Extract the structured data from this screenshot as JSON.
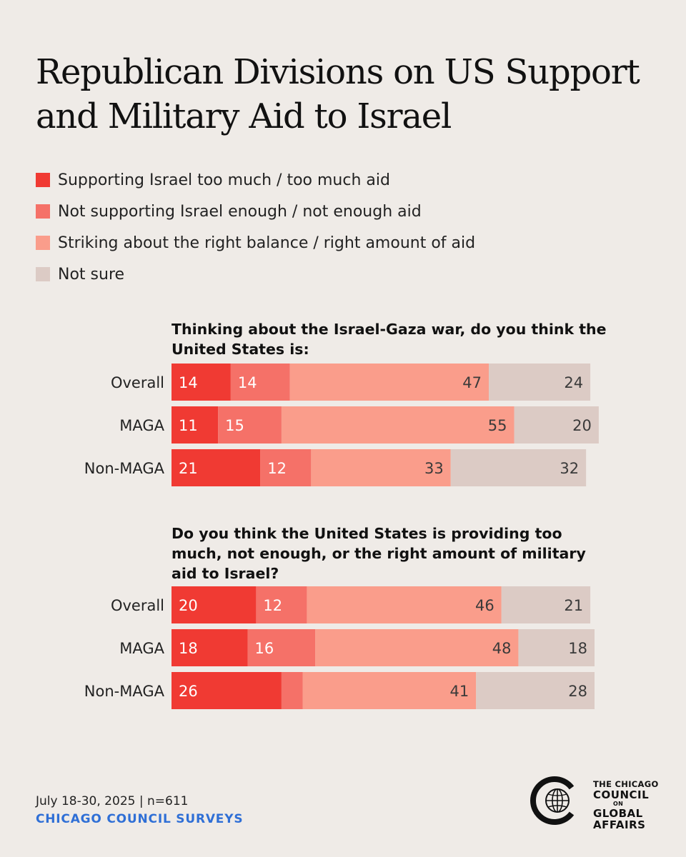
{
  "title": "Republican Divisions on US Support and Military Aid to Israel",
  "legend": [
    {
      "label": "Supporting Israel too much / too much aid",
      "color": "#f03a33"
    },
    {
      "label": "Not supporting Israel enough / not enough aid",
      "color": "#f57168"
    },
    {
      "label": "Striking about the right balance / right amount of aid",
      "color": "#fa9d8b"
    },
    {
      "label": "Not sure",
      "color": "#dccbc5"
    }
  ],
  "footer": {
    "date": "July 18-30, 2025 | n=611",
    "source": "CHICAGO COUNCIL SURVEYS"
  },
  "logo": {
    "line1": "THE CHICAGO",
    "line2": "COUNCIL",
    "line3": "ON",
    "line4": "GLOBAL",
    "line5": "AFFAIRS"
  },
  "chart_data": [
    {
      "type": "bar",
      "stacked": true,
      "orientation": "horizontal",
      "title": "Thinking about the Israel-Gaza war, do you think the United States is:",
      "categories": [
        "Overall",
        "MAGA",
        "Non-MAGA"
      ],
      "series": [
        {
          "name": "Supporting Israel too much / too much aid",
          "color": "#f03a33",
          "values": [
            14,
            11,
            21
          ]
        },
        {
          "name": "Not supporting Israel enough / not enough aid",
          "color": "#f57168",
          "values": [
            14,
            15,
            12
          ]
        },
        {
          "name": "Striking about the right balance / right amount of aid",
          "color": "#fa9d8b",
          "values": [
            47,
            55,
            33
          ]
        },
        {
          "name": "Not sure",
          "color": "#dccbc5",
          "values": [
            24,
            20,
            32
          ]
        }
      ]
    },
    {
      "type": "bar",
      "stacked": true,
      "orientation": "horizontal",
      "title": "Do you think the United States is providing too much, not enough, or the right amount of military aid to Israel?",
      "categories": [
        "Overall",
        "MAGA",
        "Non-MAGA"
      ],
      "series": [
        {
          "name": "Supporting Israel too much / too much aid",
          "color": "#f03a33",
          "values": [
            20,
            18,
            26
          ]
        },
        {
          "name": "Not supporting Israel enough / not enough aid",
          "color": "#f57168",
          "values": [
            12,
            16,
            5
          ],
          "labels": [
            "12",
            "16",
            ""
          ]
        },
        {
          "name": "Striking about the right balance / right amount of aid",
          "color": "#fa9d8b",
          "values": [
            46,
            48,
            41
          ]
        },
        {
          "name": "Not sure",
          "color": "#dccbc5",
          "values": [
            21,
            18,
            28
          ]
        }
      ]
    }
  ]
}
